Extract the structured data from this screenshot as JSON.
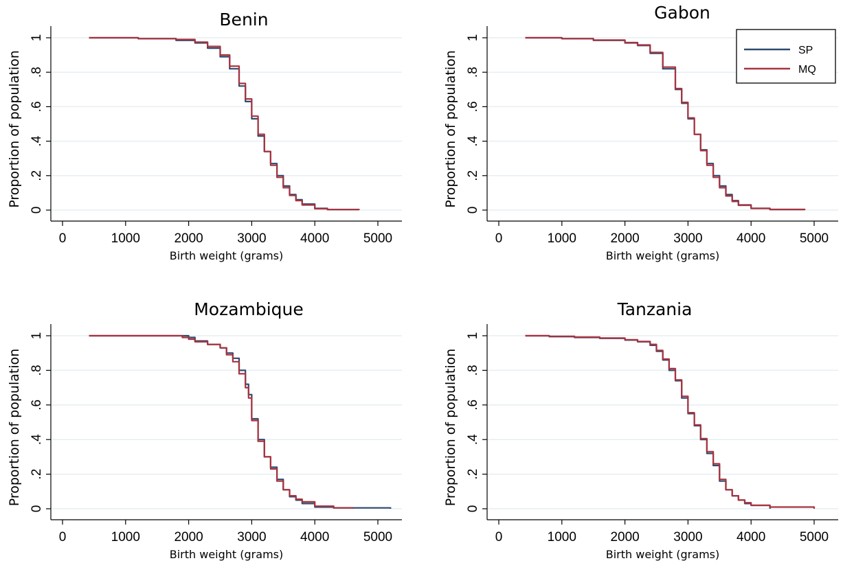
{
  "colors": {
    "SP": "#2e4a6e",
    "MQ": "#a8323e",
    "grid": "#e6eef2",
    "axis": "#000000"
  },
  "legend": {
    "placement": "top-right",
    "entries": [
      "SP",
      "MQ"
    ]
  },
  "chart_data": [
    {
      "type": "line",
      "title": "Benin",
      "xlabel": "Birth weight (grams)",
      "ylabel": "Proportion of population",
      "xlim": [
        0,
        5000
      ],
      "ylim": [
        0,
        1
      ],
      "xticks": [
        "0",
        "1000",
        "2000",
        "3000",
        "4000",
        "5000"
      ],
      "yticks": [
        "0",
        ".2",
        ".4",
        ".6",
        ".8",
        "1"
      ],
      "grid": true,
      "series": [
        {
          "name": "SP",
          "x": [
            420,
            1200,
            1800,
            2100,
            2300,
            2500,
            2650,
            2800,
            2900,
            3000,
            3100,
            3200,
            3300,
            3400,
            3500,
            3600,
            3700,
            3800,
            4000,
            4200,
            4700
          ],
          "y": [
            1.0,
            0.995,
            0.985,
            0.97,
            0.94,
            0.89,
            0.82,
            0.72,
            0.63,
            0.53,
            0.43,
            0.34,
            0.27,
            0.2,
            0.14,
            0.09,
            0.06,
            0.035,
            0.01,
            0.003,
            0.0
          ]
        },
        {
          "name": "MQ",
          "x": [
            420,
            1200,
            1800,
            2100,
            2300,
            2500,
            2650,
            2800,
            2900,
            3000,
            3100,
            3200,
            3300,
            3400,
            3500,
            3600,
            3700,
            3800,
            4000,
            4200,
            4700
          ],
          "y": [
            1.0,
            0.995,
            0.99,
            0.975,
            0.95,
            0.9,
            0.835,
            0.735,
            0.645,
            0.545,
            0.44,
            0.34,
            0.26,
            0.19,
            0.13,
            0.085,
            0.055,
            0.03,
            0.008,
            0.003,
            0.0
          ]
        }
      ]
    },
    {
      "type": "line",
      "title": "Gabon",
      "xlabel": "Birth weight (grams)",
      "ylabel": "Proportion of population",
      "xlim": [
        0,
        5000
      ],
      "ylim": [
        0,
        1
      ],
      "xticks": [
        "0",
        "1000",
        "2000",
        "3000",
        "4000",
        "5000"
      ],
      "yticks": [
        "0",
        ".2",
        ".4",
        ".6",
        ".8",
        "1"
      ],
      "grid": true,
      "series": [
        {
          "name": "SP",
          "x": [
            420,
            1000,
            1500,
            2000,
            2200,
            2400,
            2600,
            2800,
            2900,
            3000,
            3100,
            3200,
            3300,
            3400,
            3500,
            3600,
            3700,
            3800,
            4000,
            4300,
            4850
          ],
          "y": [
            1.0,
            0.995,
            0.985,
            0.97,
            0.955,
            0.91,
            0.82,
            0.7,
            0.62,
            0.53,
            0.44,
            0.35,
            0.27,
            0.2,
            0.14,
            0.09,
            0.055,
            0.03,
            0.01,
            0.003,
            0.0
          ]
        },
        {
          "name": "MQ",
          "x": [
            420,
            1000,
            1500,
            2000,
            2200,
            2400,
            2600,
            2800,
            2900,
            3000,
            3100,
            3200,
            3300,
            3400,
            3500,
            3600,
            3700,
            3800,
            4000,
            4300,
            4850
          ],
          "y": [
            1.0,
            0.995,
            0.987,
            0.972,
            0.958,
            0.915,
            0.83,
            0.705,
            0.625,
            0.535,
            0.44,
            0.345,
            0.26,
            0.19,
            0.13,
            0.082,
            0.05,
            0.028,
            0.01,
            0.004,
            0.0
          ]
        }
      ]
    },
    {
      "type": "line",
      "title": "Mozambique",
      "xlabel": "Birth weight (grams)",
      "ylabel": "Proportion of population",
      "xlim": [
        0,
        5000
      ],
      "ylim": [
        0,
        1
      ],
      "xticks": [
        "0",
        "1000",
        "2000",
        "3000",
        "4000",
        "5000"
      ],
      "yticks": [
        "0",
        ".2",
        ".4",
        ".6",
        ".8",
        "1"
      ],
      "grid": true,
      "series": [
        {
          "name": "SP",
          "x": [
            420,
            1900,
            2000,
            2100,
            2300,
            2500,
            2600,
            2700,
            2800,
            2900,
            2950,
            3000,
            3100,
            3200,
            3300,
            3400,
            3500,
            3600,
            3700,
            3800,
            4000,
            4300,
            5200
          ],
          "y": [
            1.0,
            1.0,
            0.99,
            0.97,
            0.95,
            0.93,
            0.9,
            0.87,
            0.8,
            0.72,
            0.66,
            0.52,
            0.4,
            0.3,
            0.24,
            0.17,
            0.11,
            0.07,
            0.05,
            0.03,
            0.01,
            0.005,
            0.0
          ]
        },
        {
          "name": "MQ",
          "x": [
            420,
            1900,
            2000,
            2100,
            2300,
            2500,
            2600,
            2700,
            2800,
            2900,
            2950,
            3000,
            3100,
            3200,
            3300,
            3400,
            3500,
            3600,
            3700,
            3800,
            4000,
            4300,
            4600
          ],
          "y": [
            1.0,
            0.99,
            0.98,
            0.965,
            0.95,
            0.93,
            0.89,
            0.85,
            0.78,
            0.7,
            0.64,
            0.51,
            0.39,
            0.3,
            0.23,
            0.16,
            0.11,
            0.075,
            0.055,
            0.04,
            0.015,
            0.005,
            0.0
          ]
        }
      ]
    },
    {
      "type": "line",
      "title": "Tanzania",
      "xlabel": "Birth weight (grams)",
      "ylabel": "Proportion of population",
      "xlim": [
        0,
        5000
      ],
      "ylim": [
        0,
        1
      ],
      "xticks": [
        "0",
        "1000",
        "2000",
        "3000",
        "4000",
        "5000"
      ],
      "yticks": [
        "0",
        ".2",
        ".4",
        ".6",
        ".8",
        "1"
      ],
      "grid": true,
      "series": [
        {
          "name": "SP",
          "x": [
            420,
            800,
            1200,
            1600,
            2000,
            2200,
            2400,
            2500,
            2600,
            2700,
            2800,
            2900,
            3000,
            3100,
            3200,
            3300,
            3400,
            3500,
            3600,
            3700,
            3800,
            3900,
            4000,
            4300
          ],
          "y": [
            1.0,
            0.995,
            0.99,
            0.985,
            0.975,
            0.965,
            0.945,
            0.91,
            0.86,
            0.8,
            0.74,
            0.64,
            0.55,
            0.48,
            0.4,
            0.32,
            0.25,
            0.16,
            0.11,
            0.075,
            0.05,
            0.03,
            0.02,
            0.0
          ]
        },
        {
          "name": "MQ",
          "x": [
            420,
            800,
            1200,
            1600,
            2000,
            2200,
            2400,
            2500,
            2600,
            2700,
            2800,
            2900,
            3000,
            3100,
            3200,
            3300,
            3400,
            3500,
            3600,
            3700,
            3800,
            3900,
            4000,
            4300,
            5000
          ],
          "y": [
            1.0,
            0.997,
            0.992,
            0.987,
            0.977,
            0.967,
            0.95,
            0.915,
            0.865,
            0.81,
            0.745,
            0.65,
            0.555,
            0.485,
            0.405,
            0.33,
            0.26,
            0.17,
            0.11,
            0.075,
            0.05,
            0.035,
            0.02,
            0.01,
            0.0
          ]
        }
      ]
    }
  ]
}
